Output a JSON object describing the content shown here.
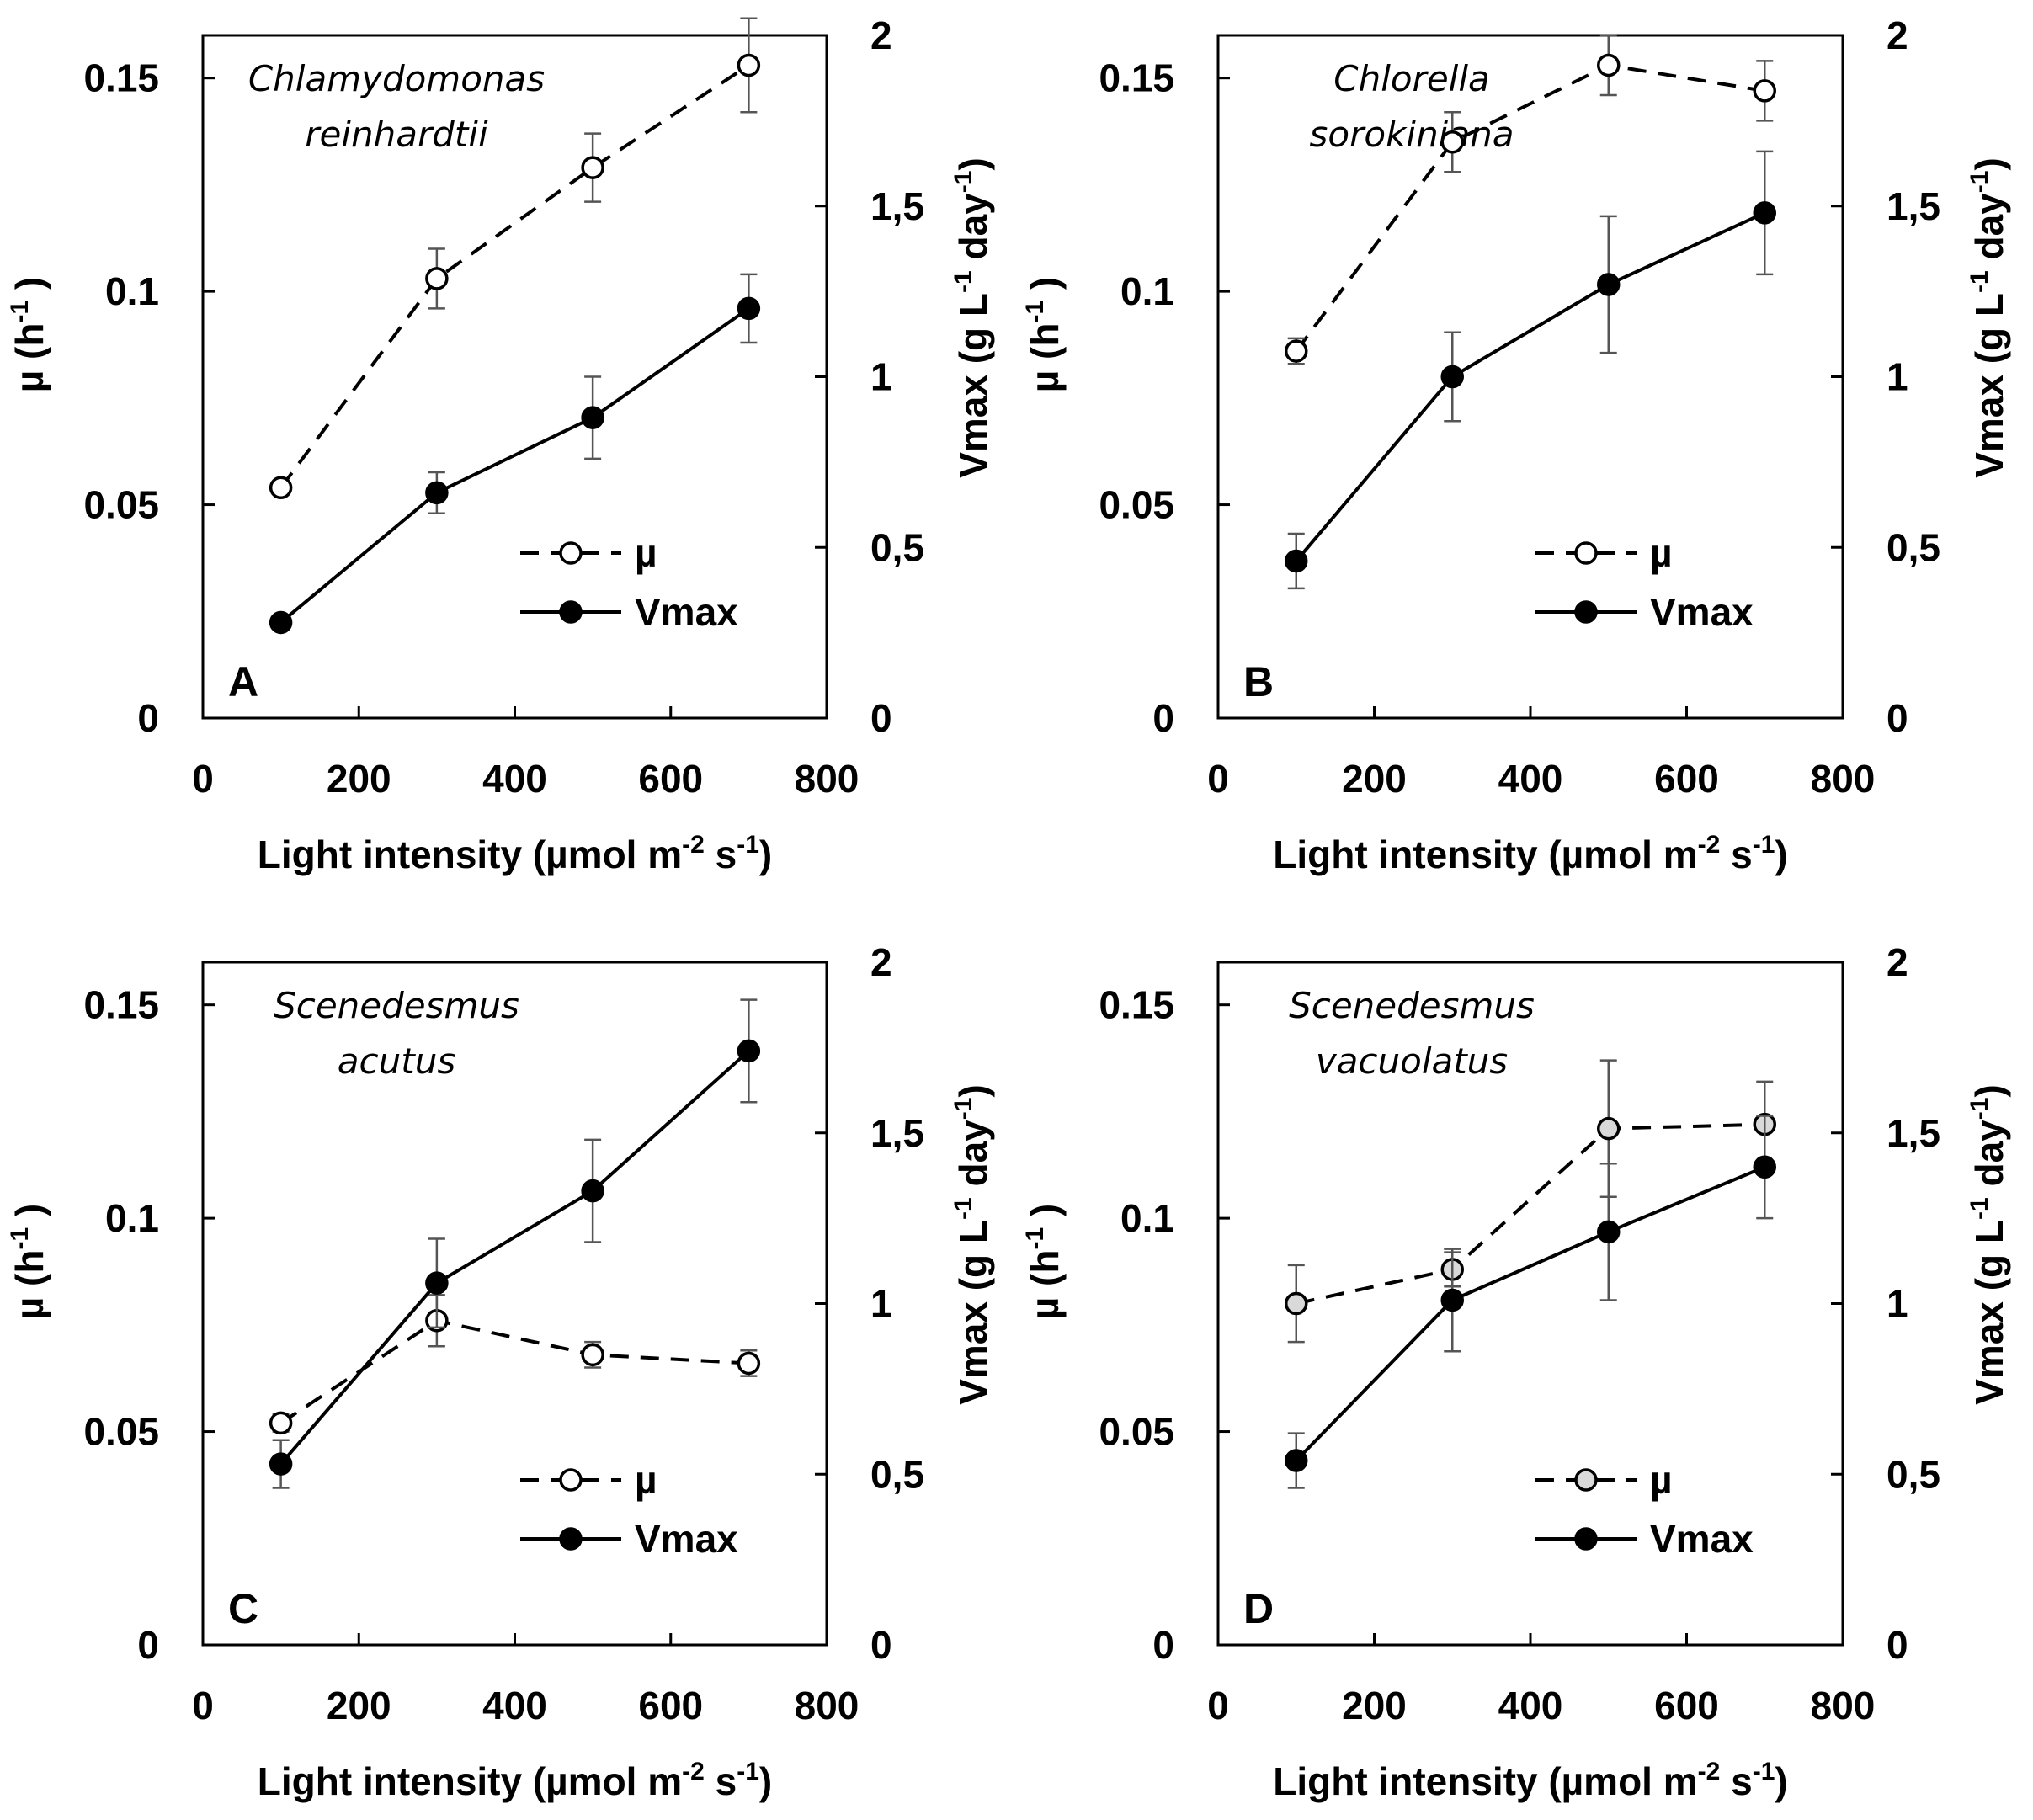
{
  "chart_data": [
    {
      "type": "line",
      "panel_letter": "A",
      "species_line1": "Chlamydomonas",
      "species_line2": "reinhardtii",
      "x": [
        100,
        300,
        500,
        700
      ],
      "xlim": [
        0,
        800
      ],
      "xticks": [
        "0",
        "200",
        "400",
        "600",
        "800"
      ],
      "xlabel_main": "Light intensity (µmol m",
      "xlabel_sup1": "-2",
      "xlabel_mid": " s",
      "xlabel_sup2": "-1",
      "xlabel_end": ")",
      "ylim_left": [
        0,
        0.16
      ],
      "yticks_left": [
        "0",
        "0.05",
        "0.1",
        "0.15"
      ],
      "ylim_right": [
        0,
        2
      ],
      "yticks_right": [
        "0",
        "0,5",
        "1",
        "1,5",
        "2"
      ],
      "ylabel_left": "µ (h",
      "ylabel_left_sup": "-1",
      "ylabel_left_end": " )",
      "ylabel_right": "Vmax (g L",
      "ylabel_right_sup1": "-1",
      "ylabel_right_mid": " day",
      "ylabel_right_sup2": "-1",
      "ylabel_right_end": ")",
      "series": [
        {
          "name": "µ",
          "axis": "left",
          "style": "dashed",
          "marker": "open",
          "marker_fill": "#ffffff",
          "values": [
            0.054,
            0.103,
            0.129,
            0.153
          ],
          "errors": [
            0.0,
            0.007,
            0.008,
            0.011
          ]
        },
        {
          "name": "Vmax",
          "axis": "right",
          "style": "solid",
          "marker": "filled",
          "marker_fill": "#000000",
          "values": [
            0.28,
            0.66,
            0.88,
            1.2
          ],
          "errors": [
            0.0,
            0.06,
            0.12,
            0.1
          ]
        }
      ]
    },
    {
      "type": "line",
      "panel_letter": "B",
      "species_line1": "Chlorella",
      "species_line2": "sorokiniana",
      "x": [
        100,
        300,
        500,
        700
      ],
      "xlim": [
        0,
        800
      ],
      "xticks": [
        "0",
        "200",
        "400",
        "600",
        "800"
      ],
      "xlabel_main": "Light intensity (µmol m",
      "xlabel_sup1": "-2",
      "xlabel_mid": " s",
      "xlabel_sup2": "-1",
      "xlabel_end": ")",
      "ylim_left": [
        0,
        0.16
      ],
      "yticks_left": [
        "0",
        "0.05",
        "0.1",
        "0.15"
      ],
      "ylim_right": [
        0,
        2
      ],
      "yticks_right": [
        "0",
        "0,5",
        "1",
        "1,5",
        "2"
      ],
      "ylabel_left": "µ (h",
      "ylabel_left_sup": "-1",
      "ylabel_left_end": " )",
      "ylabel_right": "Vmax (g L",
      "ylabel_right_sup1": "-1",
      "ylabel_right_mid": " day",
      "ylabel_right_sup2": "-1",
      "ylabel_right_end": ")",
      "series": [
        {
          "name": "µ",
          "axis": "left",
          "style": "dashed",
          "marker": "open",
          "marker_fill": "#ffffff",
          "values": [
            0.086,
            0.135,
            0.153,
            0.147
          ],
          "errors": [
            0.003,
            0.007,
            0.007,
            0.007
          ]
        },
        {
          "name": "Vmax",
          "axis": "right",
          "style": "solid",
          "marker": "filled",
          "marker_fill": "#000000",
          "values": [
            0.46,
            1.0,
            1.27,
            1.48
          ],
          "errors": [
            0.08,
            0.13,
            0.2,
            0.18
          ]
        }
      ]
    },
    {
      "type": "line",
      "panel_letter": "C",
      "species_line1": "Scenedesmus",
      "species_line2": "acutus",
      "x": [
        100,
        300,
        500,
        700
      ],
      "xlim": [
        0,
        800
      ],
      "xticks": [
        "0",
        "200",
        "400",
        "600",
        "800"
      ],
      "xlabel_main": "Light intensity (µmol m",
      "xlabel_sup1": "-2",
      "xlabel_mid": " s",
      "xlabel_sup2": "-1",
      "xlabel_end": ")",
      "ylim_left": [
        0,
        0.16
      ],
      "yticks_left": [
        "0",
        "0.05",
        "0.1",
        "0.15"
      ],
      "ylim_right": [
        0,
        2
      ],
      "yticks_right": [
        "0",
        "0,5",
        "1",
        "1,5",
        "2"
      ],
      "ylabel_left": "µ (h",
      "ylabel_left_sup": "-1",
      "ylabel_left_end": " )",
      "ylabel_right": "Vmax (g L",
      "ylabel_right_sup1": "-1",
      "ylabel_right_mid": " day",
      "ylabel_right_sup2": "-1",
      "ylabel_right_end": ")",
      "series": [
        {
          "name": "µ",
          "axis": "left",
          "style": "dashed",
          "marker": "open",
          "marker_fill": "#ffffff",
          "values": [
            0.052,
            0.076,
            0.068,
            0.066
          ],
          "errors": [
            0.002,
            0.006,
            0.003,
            0.003
          ]
        },
        {
          "name": "Vmax",
          "axis": "right",
          "style": "solid",
          "marker": "filled",
          "marker_fill": "#000000",
          "values": [
            0.53,
            1.06,
            1.33,
            1.74
          ],
          "errors": [
            0.07,
            0.13,
            0.15,
            0.15
          ]
        }
      ]
    },
    {
      "type": "line",
      "panel_letter": "D",
      "species_line1": "Scenedesmus",
      "species_line2": "vacuolatus",
      "x": [
        100,
        300,
        500,
        700
      ],
      "xlim": [
        0,
        800
      ],
      "xticks": [
        "0",
        "200",
        "400",
        "600",
        "800"
      ],
      "xlabel_main": "Light intensity (µmol m",
      "xlabel_sup1": "-2",
      "xlabel_mid": " s",
      "xlabel_sup2": "-1",
      "xlabel_end": ")",
      "ylim_left": [
        0,
        0.16
      ],
      "yticks_left": [
        "0",
        "0.05",
        "0.1",
        "0.15"
      ],
      "ylim_right": [
        0,
        2
      ],
      "yticks_right": [
        "0",
        "0,5",
        "1",
        "1,5",
        "2"
      ],
      "ylabel_left": "µ (h",
      "ylabel_left_sup": "-1",
      "ylabel_left_end": " )",
      "ylabel_right": "Vmax (g L",
      "ylabel_right_sup1": "-1",
      "ylabel_right_mid": " day",
      "ylabel_right_sup2": "-1",
      "ylabel_right_end": ")",
      "series": [
        {
          "name": "µ",
          "axis": "left",
          "style": "dashed",
          "marker": "open",
          "marker_fill": "#d9d9d9",
          "values": [
            0.08,
            0.088,
            0.121,
            0.122
          ],
          "errors": [
            0.009,
            0.004,
            0.016,
            0.01
          ]
        },
        {
          "name": "Vmax",
          "axis": "right",
          "style": "solid",
          "marker": "filled",
          "marker_fill": "#000000",
          "values": [
            0.54,
            1.01,
            1.21,
            1.4
          ],
          "errors": [
            0.08,
            0.15,
            0.2,
            0.15
          ]
        }
      ]
    }
  ]
}
